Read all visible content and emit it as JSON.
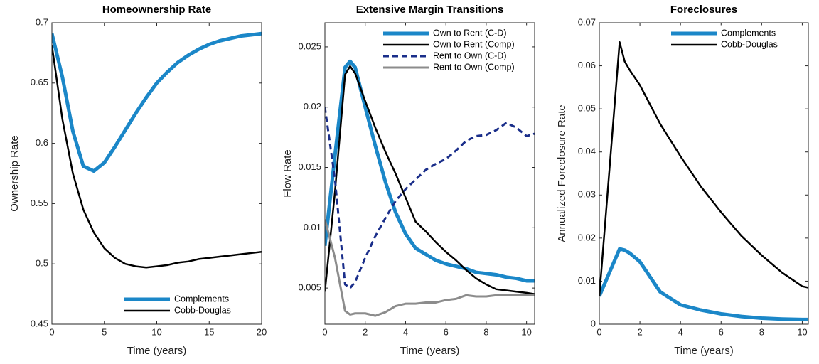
{
  "chart_data": [
    {
      "type": "line",
      "title": "Homeownership Rate",
      "xlabel": "Time (years)",
      "ylabel": "Ownership Rate",
      "x": [
        0,
        1,
        2,
        3,
        4,
        5,
        6,
        7,
        8,
        9,
        10,
        11,
        12,
        13,
        14,
        15,
        16,
        17,
        18,
        19,
        20
      ],
      "series": [
        {
          "name": "Complements",
          "color": "#1b87c8",
          "values": [
            0.691,
            0.655,
            0.61,
            0.581,
            0.577,
            0.584,
            0.597,
            0.611,
            0.625,
            0.638,
            0.65,
            0.659,
            0.667,
            0.673,
            0.678,
            0.682,
            0.685,
            0.687,
            0.689,
            0.69,
            0.691
          ]
        },
        {
          "name": "Cobb-Douglas",
          "color": "#000000",
          "values": [
            0.681,
            0.62,
            0.575,
            0.545,
            0.526,
            0.513,
            0.505,
            0.5,
            0.498,
            0.497,
            0.498,
            0.499,
            0.501,
            0.502,
            0.504,
            0.505,
            0.506,
            0.507,
            0.508,
            0.509,
            0.51
          ]
        }
      ],
      "xlim": [
        0,
        20
      ],
      "xticks": [
        0,
        5,
        10,
        15,
        20
      ],
      "ylim": [
        0.45,
        0.7
      ],
      "yticks": [
        0.45,
        0.5,
        0.55,
        0.6,
        0.65,
        0.7
      ],
      "legend": "lower right"
    },
    {
      "type": "line",
      "title": "Extensive Margin Transitions",
      "xlabel": "Time (years)",
      "ylabel": "Flow Rate",
      "x": [
        0,
        0.5,
        1,
        1.25,
        1.5,
        2,
        2.5,
        3,
        3.5,
        4,
        4.5,
        5,
        5.5,
        6,
        6.5,
        7,
        7.5,
        8,
        8.5,
        9,
        9.5,
        10,
        10.4
      ],
      "series": [
        {
          "name": "Own to Rent (C-D)",
          "color": "#1b87c8",
          "values": [
            0.0085,
            0.016,
            0.0233,
            0.0238,
            0.0233,
            0.02,
            0.0168,
            0.0138,
            0.0113,
            0.0095,
            0.0083,
            0.0078,
            0.0073,
            0.007,
            0.0068,
            0.0066,
            0.0063,
            0.0062,
            0.0061,
            0.0059,
            0.0058,
            0.0056,
            0.0056
          ]
        },
        {
          "name": "Own to Rent (Comp)",
          "color": "#000000",
          "values": [
            0.0047,
            0.013,
            0.0227,
            0.0234,
            0.0228,
            0.0205,
            0.0183,
            0.0163,
            0.0145,
            0.0125,
            0.0105,
            0.0097,
            0.0088,
            0.008,
            0.0073,
            0.0065,
            0.0058,
            0.0053,
            0.0049,
            0.0048,
            0.0047,
            0.0046,
            0.0045
          ]
        },
        {
          "name": "Rent to Own (C-D)",
          "color": "#1a2e8a",
          "linestyle": "dashed",
          "values": [
            0.02,
            0.014,
            0.0053,
            0.005,
            0.0055,
            0.0075,
            0.0093,
            0.0108,
            0.0122,
            0.0132,
            0.014,
            0.0148,
            0.0153,
            0.0157,
            0.0164,
            0.0172,
            0.0176,
            0.0177,
            0.0181,
            0.0187,
            0.0183,
            0.0176,
            0.0178
          ]
        },
        {
          "name": "Rent to Own (Comp)",
          "color": "#8c8c8c",
          "values": [
            0.0107,
            0.0075,
            0.0031,
            0.0028,
            0.0029,
            0.0029,
            0.0027,
            0.003,
            0.0035,
            0.0037,
            0.0037,
            0.0038,
            0.0038,
            0.004,
            0.0041,
            0.0044,
            0.0043,
            0.0043,
            0.0044,
            0.0044,
            0.0044,
            0.0044,
            0.0044
          ]
        }
      ],
      "xlim": [
        0,
        10.4
      ],
      "xticks": [
        0,
        2,
        4,
        6,
        8,
        10
      ],
      "ylim": [
        0.002,
        0.027
      ],
      "yticks": [
        0.005,
        0.01,
        0.015,
        0.02,
        0.025
      ],
      "legend": "upper right"
    },
    {
      "type": "line",
      "title": "Foreclosures",
      "xlabel": "Time (years)",
      "ylabel": "Annualized Foreclosure Rate",
      "x": [
        0,
        0.5,
        1,
        1.25,
        1.5,
        2,
        2.5,
        3,
        4,
        5,
        6,
        7,
        8,
        9,
        10,
        10.3
      ],
      "series": [
        {
          "name": "Complements",
          "color": "#1b87c8",
          "values": [
            0.0065,
            0.012,
            0.0175,
            0.0172,
            0.0165,
            0.0145,
            0.011,
            0.0075,
            0.0045,
            0.0033,
            0.0024,
            0.0018,
            0.0014,
            0.0012,
            0.0011,
            0.0011
          ]
        },
        {
          "name": "Cobb-Douglas",
          "color": "#000000",
          "values": [
            0.0065,
            0.036,
            0.0655,
            0.061,
            0.059,
            0.0555,
            0.051,
            0.0465,
            0.039,
            0.032,
            0.026,
            0.0205,
            0.016,
            0.012,
            0.0088,
            0.0085
          ]
        }
      ],
      "xlim": [
        0,
        10.3
      ],
      "xticks": [
        0,
        2,
        4,
        6,
        8,
        10
      ],
      "ylim": [
        0,
        0.07
      ],
      "yticks": [
        0,
        0.01,
        0.02,
        0.03,
        0.04,
        0.05,
        0.06,
        0.07
      ],
      "legend": "upper right"
    }
  ]
}
